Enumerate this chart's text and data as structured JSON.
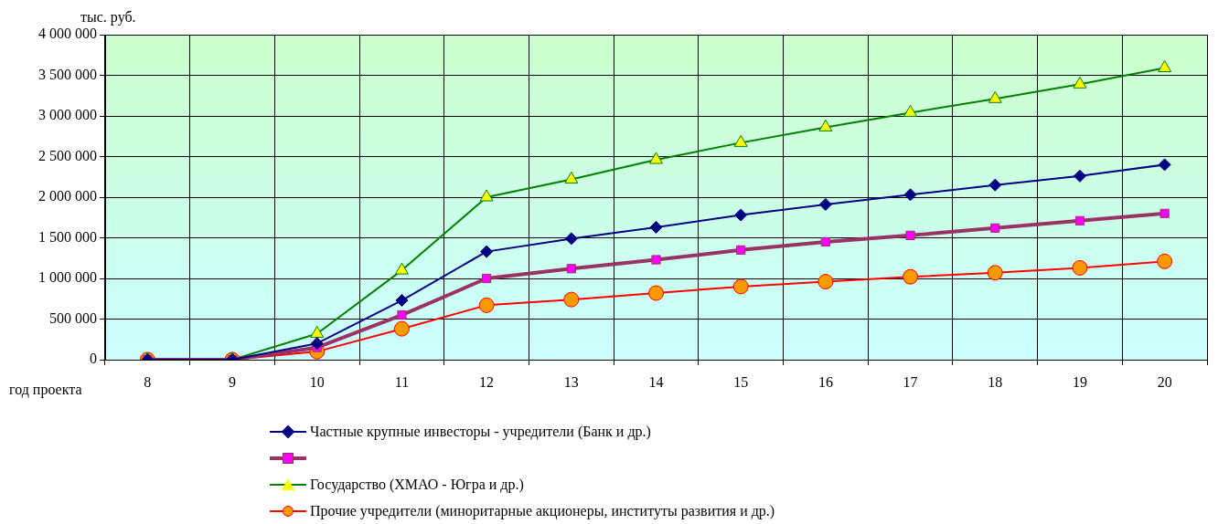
{
  "chart_data": {
    "type": "line",
    "ylabel": "тыс. руб.",
    "xlabel": "год проекта",
    "categories": [
      "8",
      "9",
      "10",
      "11",
      "12",
      "13",
      "14",
      "15",
      "16",
      "17",
      "18",
      "19",
      "20"
    ],
    "ylim": [
      0,
      4000000
    ],
    "yticks": [
      {
        "value": 0,
        "label": "0"
      },
      {
        "value": 500000,
        "label": "500 000"
      },
      {
        "value": 1000000,
        "label": "1 000 000"
      },
      {
        "value": 1500000,
        "label": "1 500 000"
      },
      {
        "value": 2000000,
        "label": "2 000 000"
      },
      {
        "value": 2500000,
        "label": "2 500 000"
      },
      {
        "value": 3000000,
        "label": "3 000 000"
      },
      {
        "value": 3500000,
        "label": "3 500 000"
      },
      {
        "value": 4000000,
        "label": "4 000 000"
      }
    ],
    "grid": true,
    "legend": "bottom",
    "line_style": "solid",
    "series": [
      {
        "name": "Частные крупные инвесторы - учредители (Банк и др.)",
        "color": "#000080",
        "marker": "diamond",
        "colors": [
          "#000080",
          "#000080",
          "#000080",
          "#000080",
          "#000080",
          "#000080",
          "#000080",
          "#000080",
          "#000080",
          "#000080",
          "#000080",
          "#000080",
          "#000080"
        ],
        "values": [
          0,
          0,
          200000,
          730000,
          1330000,
          1490000,
          1630000,
          1780000,
          1910000,
          2030000,
          2150000,
          2260000,
          2400000
        ]
      },
      {
        "color": "#993366",
        "marker": "square",
        "colors": [
          "#ff00ff",
          "#ff00ff",
          "#ff00ff",
          "#ff00ff",
          "#ff00ff",
          "#ff00ff",
          "#ff00ff",
          "#ff00ff",
          "#ff00ff",
          "#ff00ff",
          "#ff00ff",
          "#ff00ff",
          "#ff00ff"
        ],
        "values": [
          0,
          0,
          150000,
          550000,
          1000000,
          1120000,
          1230000,
          1350000,
          1450000,
          1530000,
          1620000,
          1710000,
          1800000
        ]
      },
      {
        "name": "Государство (ХМАО - Югра и др.)",
        "color": "#008000",
        "marker": "triangle",
        "colors": [
          "#ffff00",
          "#ffff00",
          "#ffff00",
          "#ffff00",
          "#ffff00",
          "#ffff00",
          "#ffff00",
          "#ffff00",
          "#ffff00",
          "#ffff00",
          "#ffff00",
          "#ffff00",
          "#ffff00"
        ],
        "values": [
          0,
          0,
          320000,
          1100000,
          2000000,
          2220000,
          2460000,
          2670000,
          2860000,
          3040000,
          3210000,
          3390000,
          3590000
        ]
      },
      {
        "name": "Прочие учредители (миноритарные акционеры, институты развития и др.)",
        "color": "#ff0000",
        "marker": "circle",
        "colors": [
          "#ff9900",
          "#ff9900",
          "#ff9900",
          "#ff9900",
          "#ff9900",
          "#ff9900",
          "#ff9900",
          "#ff9900",
          "#ff9900",
          "#ff9900",
          "#ff9900",
          "#ff9900",
          "#ff9900"
        ],
        "values": [
          0,
          0,
          100000,
          380000,
          670000,
          740000,
          820000,
          900000,
          960000,
          1020000,
          1070000,
          1130000,
          1210000
        ]
      }
    ]
  }
}
